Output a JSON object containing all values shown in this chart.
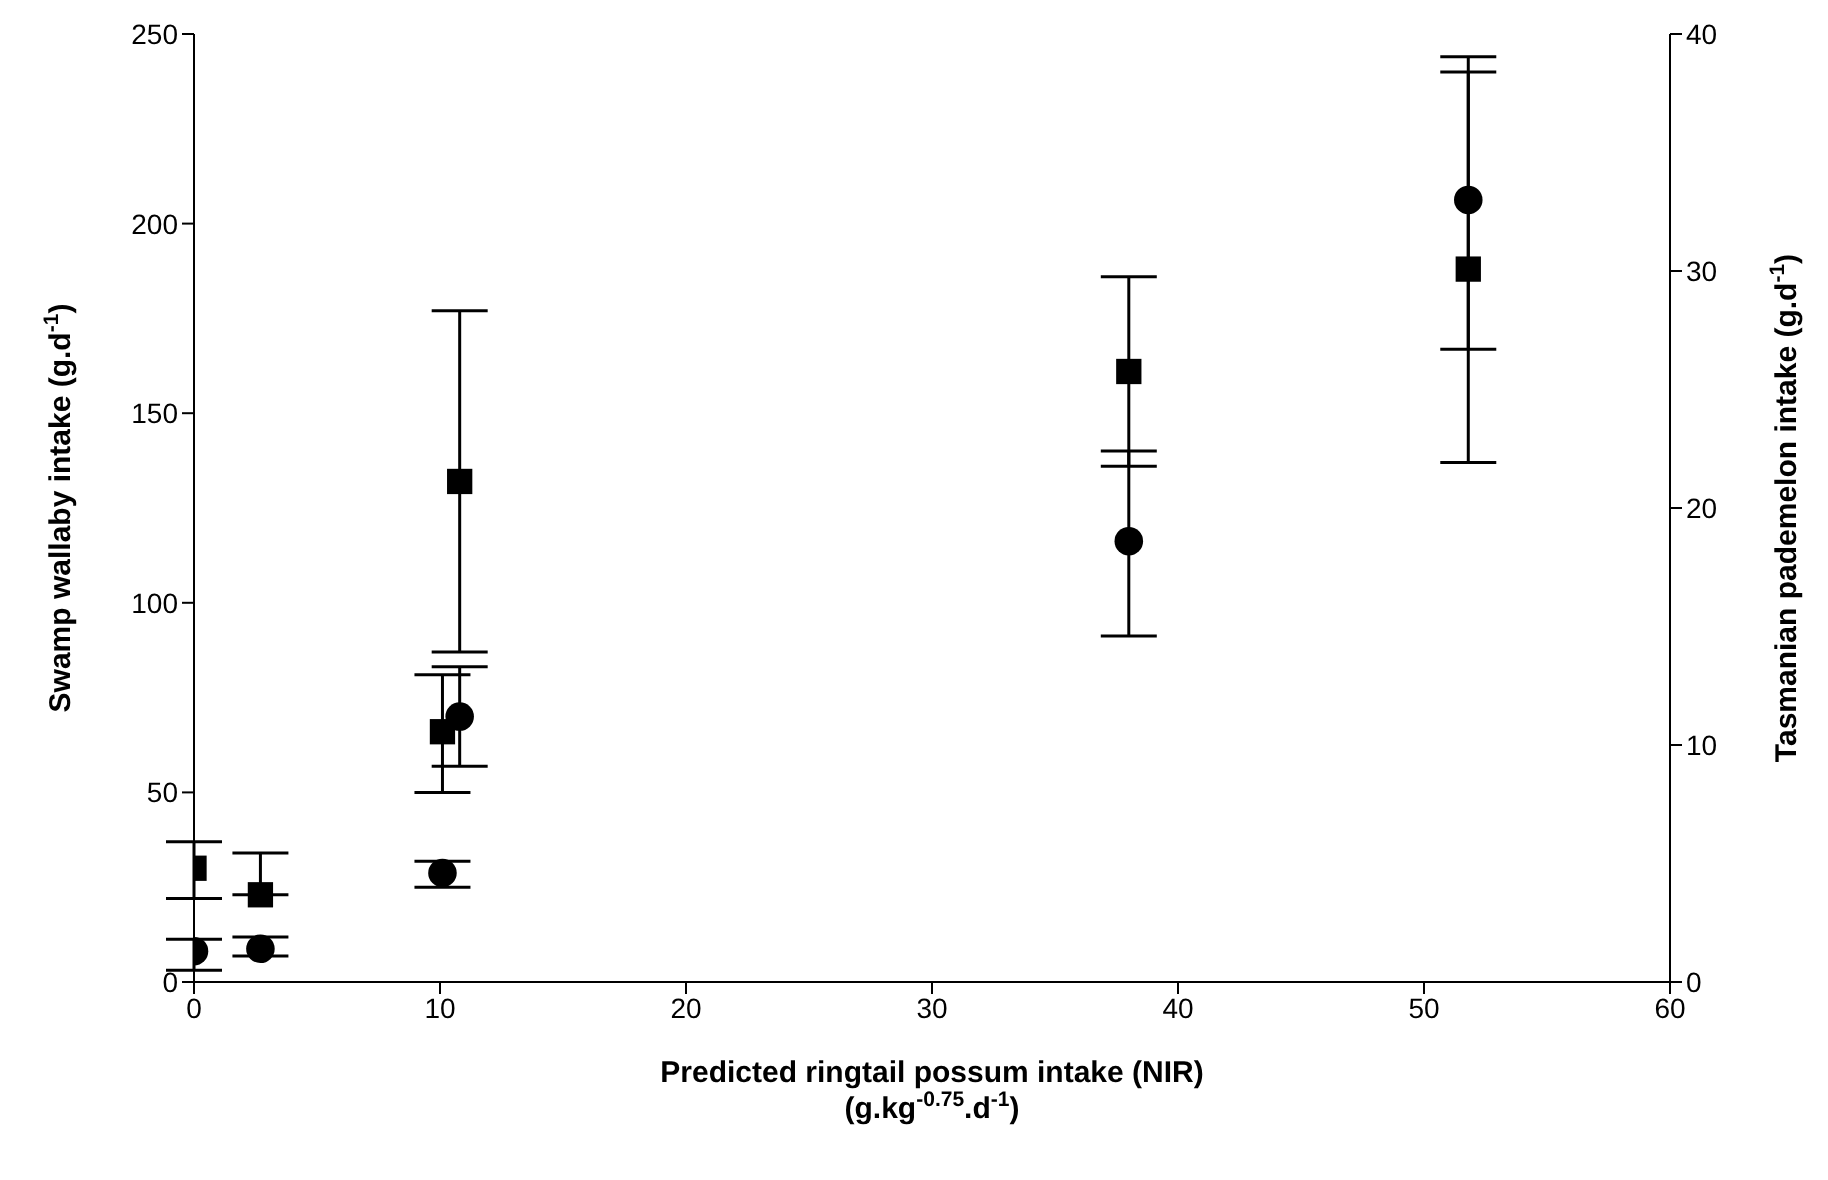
{
  "chart_data": {
    "type": "scatter",
    "xlabel": "Predicted ringtail possum intake (NIR)\n(g.kg$^{-0.75}$.d$^{-1}$)",
    "ylabel": "Swamp wallaby intake (g.d$^{-1}$)",
    "y2label": "Tasmanian pademelon intake (g.d$^{-1}$)",
    "xlim": [
      0,
      60
    ],
    "xticks": [
      0,
      10,
      20,
      30,
      40,
      50,
      60
    ],
    "ylim": [
      0,
      250
    ],
    "yticks": [
      0,
      50,
      100,
      150,
      200,
      250
    ],
    "y2lim": [
      0,
      40
    ],
    "y2ticks": [
      0,
      10,
      20,
      30,
      40
    ],
    "grid": false,
    "legend": false,
    "series": [
      {
        "color": "#000000",
        "marker": "square",
        "x": [
          0,
          2.7,
          10.1,
          10.8,
          38,
          51.8
        ],
        "values": [
          30,
          23,
          66,
          132,
          161,
          188
        ],
        "errors": [
          [
            22,
            37
          ],
          [
            23,
            34
          ],
          [
            50,
            81
          ],
          [
            87,
            177
          ],
          [
            136,
            186
          ],
          [
            137,
            244
          ]
        ]
      },
      {
        "color": "#000000",
        "marker": "circle",
        "axis": "y2",
        "x": [
          0,
          2.7,
          10.1,
          10.8,
          38,
          51.8
        ],
        "values": [
          1.3,
          1.4,
          4.6,
          11.2,
          18.6,
          33
        ],
        "errors": [
          [
            0.5,
            1.8
          ],
          [
            1.1,
            1.9
          ],
          [
            4,
            5.1
          ],
          [
            9.1,
            13.3
          ],
          [
            14.6,
            22.4
          ],
          [
            26.7,
            38.4
          ]
        ]
      }
    ]
  }
}
